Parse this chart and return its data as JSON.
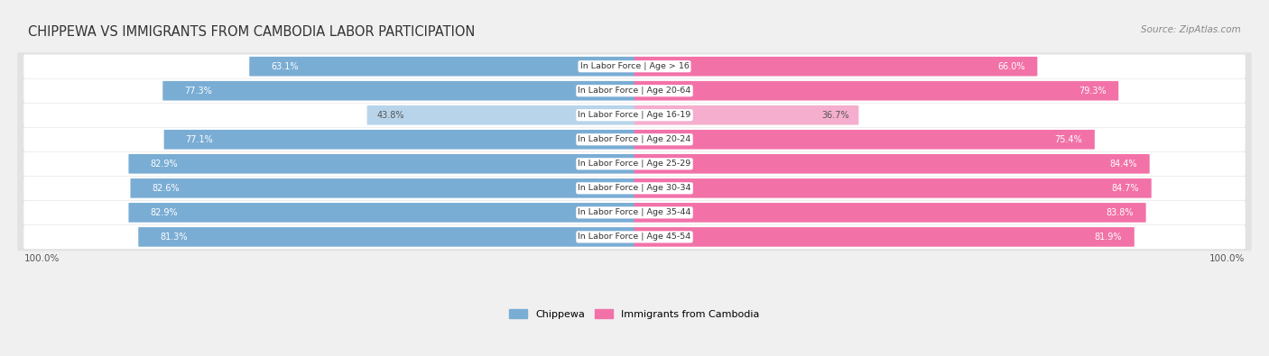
{
  "title": "CHIPPEWA VS IMMIGRANTS FROM CAMBODIA LABOR PARTICIPATION",
  "source": "Source: ZipAtlas.com",
  "categories": [
    "In Labor Force | Age > 16",
    "In Labor Force | Age 20-64",
    "In Labor Force | Age 16-19",
    "In Labor Force | Age 20-24",
    "In Labor Force | Age 25-29",
    "In Labor Force | Age 30-34",
    "In Labor Force | Age 35-44",
    "In Labor Force | Age 45-54"
  ],
  "chippewa_values": [
    63.1,
    77.3,
    43.8,
    77.1,
    82.9,
    82.6,
    82.9,
    81.3
  ],
  "cambodia_values": [
    66.0,
    79.3,
    36.7,
    75.4,
    84.4,
    84.7,
    83.8,
    81.9
  ],
  "chippewa_color": "#7aadd4",
  "chippewa_color_light": "#b8d4ea",
  "cambodia_color": "#f272a8",
  "cambodia_color_light": "#f5aece",
  "row_bg_color": "#f0f0f0",
  "row_inner_color": "#ffffff",
  "background_color": "#f0f0f0",
  "legend_chippewa": "Chippewa",
  "legend_cambodia": "Immigrants from Cambodia",
  "bottom_left_label": "100.0%",
  "bottom_right_label": "100.0%",
  "max_value": 100.0
}
